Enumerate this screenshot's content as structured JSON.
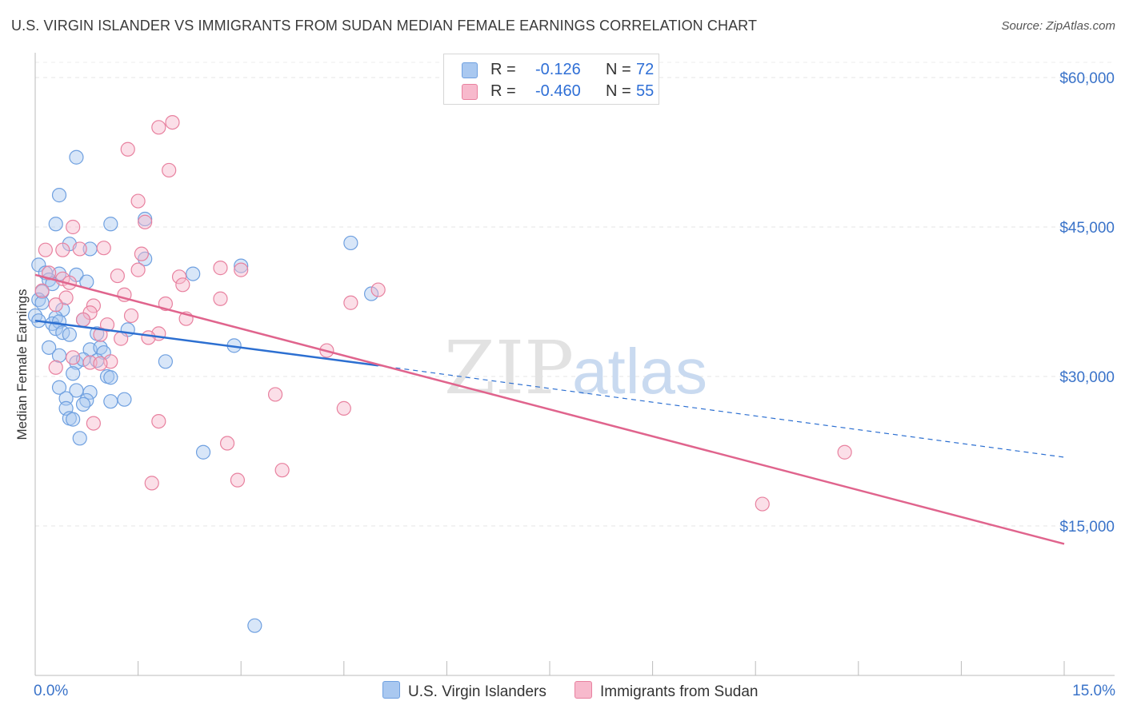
{
  "title": "U.S. VIRGIN ISLANDER VS IMMIGRANTS FROM SUDAN MEDIAN FEMALE EARNINGS CORRELATION CHART",
  "source": "Source: ZipAtlas.com",
  "watermark": {
    "zip": "ZIP",
    "atlas": "atlas"
  },
  "legend": {
    "rows": [
      {
        "r_label": "R =",
        "r_value": "-0.126",
        "n_label": "N =",
        "n_value": "72",
        "color": "#a9c8f0"
      },
      {
        "r_label": "R =",
        "r_value": "-0.460",
        "n_label": "N =",
        "n_value": "55",
        "color": "#f7b9cc"
      }
    ]
  },
  "chart_data": {
    "type": "scatter",
    "title": "U.S. VIRGIN ISLANDER VS IMMIGRANTS FROM SUDAN MEDIAN FEMALE EARNINGS CORRELATION CHART",
    "xlabel": "",
    "ylabel": "Median Female Earnings",
    "xlim": [
      0,
      15
    ],
    "ylim": [
      0,
      62000
    ],
    "x_tick_labels": [
      "0.0%",
      "15.0%"
    ],
    "y_ticks": [
      15000,
      30000,
      45000,
      60000
    ],
    "y_tick_labels": [
      "$15,000",
      "$30,000",
      "$45,000",
      "$60,000"
    ],
    "grid": true,
    "legend_position": "top-center",
    "series": [
      {
        "name": "U.S. Virgin Islanders",
        "color": "#6fa0e0",
        "fill": "#a9c8f0",
        "trend": {
          "x": [
            0,
            5.0
          ],
          "y": [
            35600,
            31100
          ],
          "extend_to_x": 15,
          "extend_y": 21900
        },
        "points": [
          [
            0.6,
            52000
          ],
          [
            0.35,
            48200
          ],
          [
            0.3,
            45300
          ],
          [
            1.1,
            45300
          ],
          [
            1.6,
            45800
          ],
          [
            0.5,
            43300
          ],
          [
            4.6,
            43400
          ],
          [
            0.8,
            42800
          ],
          [
            1.6,
            41800
          ],
          [
            0.05,
            41200
          ],
          [
            3.0,
            41100
          ],
          [
            2.3,
            40300
          ],
          [
            0.15,
            40400
          ],
          [
            0.6,
            40200
          ],
          [
            0.35,
            40300
          ],
          [
            0.2,
            39700
          ],
          [
            0.75,
            39500
          ],
          [
            0.25,
            39300
          ],
          [
            0.1,
            38500
          ],
          [
            4.9,
            38300
          ],
          [
            0.05,
            37700
          ],
          [
            0.1,
            37400
          ],
          [
            0.4,
            36700
          ],
          [
            0.0,
            36100
          ],
          [
            0.3,
            35900
          ],
          [
            0.25,
            35300
          ],
          [
            0.05,
            35600
          ],
          [
            0.35,
            35500
          ],
          [
            0.7,
            35700
          ],
          [
            0.3,
            34800
          ],
          [
            0.4,
            34400
          ],
          [
            0.5,
            34200
          ],
          [
            0.9,
            34300
          ],
          [
            1.35,
            34700
          ],
          [
            2.9,
            33100
          ],
          [
            0.2,
            32900
          ],
          [
            0.8,
            32700
          ],
          [
            0.95,
            32900
          ],
          [
            1.0,
            32400
          ],
          [
            0.35,
            32100
          ],
          [
            0.9,
            31600
          ],
          [
            1.9,
            31500
          ],
          [
            0.6,
            31400
          ],
          [
            0.7,
            31700
          ],
          [
            0.55,
            30300
          ],
          [
            1.05,
            30000
          ],
          [
            1.1,
            29900
          ],
          [
            0.35,
            28900
          ],
          [
            0.6,
            28600
          ],
          [
            0.8,
            28400
          ],
          [
            0.75,
            27600
          ],
          [
            1.1,
            27500
          ],
          [
            1.3,
            27700
          ],
          [
            0.45,
            27800
          ],
          [
            0.7,
            27200
          ],
          [
            0.45,
            26800
          ],
          [
            0.5,
            25800
          ],
          [
            0.55,
            25700
          ],
          [
            0.65,
            23800
          ],
          [
            2.45,
            22400
          ],
          [
            3.2,
            5000
          ]
        ]
      },
      {
        "name": "Immigrants from Sudan",
        "color": "#e8819f",
        "fill": "#f7b9cc",
        "trend": {
          "x": [
            0,
            15
          ],
          "y": [
            40200,
            13200
          ]
        },
        "points": [
          [
            2.0,
            55500
          ],
          [
            1.8,
            55000
          ],
          [
            1.35,
            52800
          ],
          [
            1.95,
            50700
          ],
          [
            1.5,
            47600
          ],
          [
            0.55,
            45000
          ],
          [
            1.6,
            45500
          ],
          [
            0.15,
            42700
          ],
          [
            1.0,
            42900
          ],
          [
            0.4,
            42700
          ],
          [
            0.65,
            42800
          ],
          [
            1.55,
            42300
          ],
          [
            1.5,
            40700
          ],
          [
            2.7,
            40900
          ],
          [
            3.0,
            40700
          ],
          [
            0.2,
            40400
          ],
          [
            1.2,
            40100
          ],
          [
            2.1,
            40000
          ],
          [
            0.4,
            39800
          ],
          [
            2.15,
            39200
          ],
          [
            5.0,
            38700
          ],
          [
            1.3,
            38200
          ],
          [
            0.45,
            37900
          ],
          [
            2.7,
            37800
          ],
          [
            4.6,
            37400
          ],
          [
            1.9,
            37300
          ],
          [
            0.3,
            37200
          ],
          [
            0.85,
            37100
          ],
          [
            0.8,
            36400
          ],
          [
            1.4,
            36100
          ],
          [
            2.2,
            35800
          ],
          [
            0.7,
            35700
          ],
          [
            1.05,
            35200
          ],
          [
            0.95,
            34200
          ],
          [
            1.8,
            34300
          ],
          [
            1.25,
            33800
          ],
          [
            1.65,
            33900
          ],
          [
            4.25,
            32600
          ],
          [
            0.55,
            31900
          ],
          [
            1.1,
            31500
          ],
          [
            0.8,
            31400
          ],
          [
            0.95,
            31300
          ],
          [
            0.3,
            30900
          ],
          [
            3.5,
            28200
          ],
          [
            4.5,
            26800
          ],
          [
            1.8,
            25500
          ],
          [
            2.8,
            23300
          ],
          [
            11.8,
            22400
          ],
          [
            3.6,
            20600
          ],
          [
            2.95,
            19600
          ],
          [
            1.7,
            19300
          ],
          [
            10.6,
            17200
          ],
          [
            0.85,
            25300
          ],
          [
            0.1,
            38600
          ],
          [
            0.5,
            39400
          ]
        ]
      }
    ]
  }
}
